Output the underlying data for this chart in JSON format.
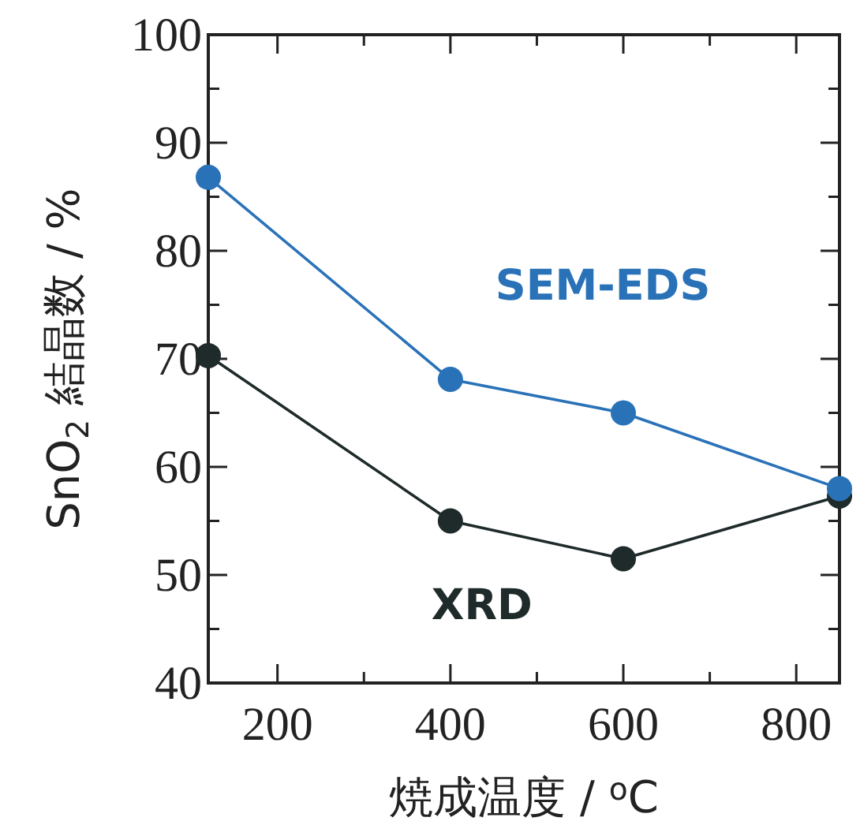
{
  "chart_data": {
    "type": "line",
    "xlabel": "焼成温度 / $^{o}$C",
    "ylabel": "SnO$_{2}$ 結晶数 / %",
    "x": [
      120,
      400,
      600,
      850
    ],
    "xlim": [
      120,
      850
    ],
    "ylim": [
      40,
      100
    ],
    "xticks": [
      200,
      400,
      600,
      800
    ],
    "yticks": [
      40,
      50,
      60,
      70,
      80,
      90,
      100
    ],
    "marker": "circle",
    "line_style": "solid",
    "series": [
      {
        "name": "SEM-EDS",
        "color": "#2a72b8",
        "values": [
          86.8,
          68.1,
          65.0,
          58.0
        ]
      },
      {
        "name": "XRD",
        "color": "#1f2a2a",
        "values": [
          70.3,
          55.0,
          51.5,
          57.3
        ]
      }
    ]
  }
}
